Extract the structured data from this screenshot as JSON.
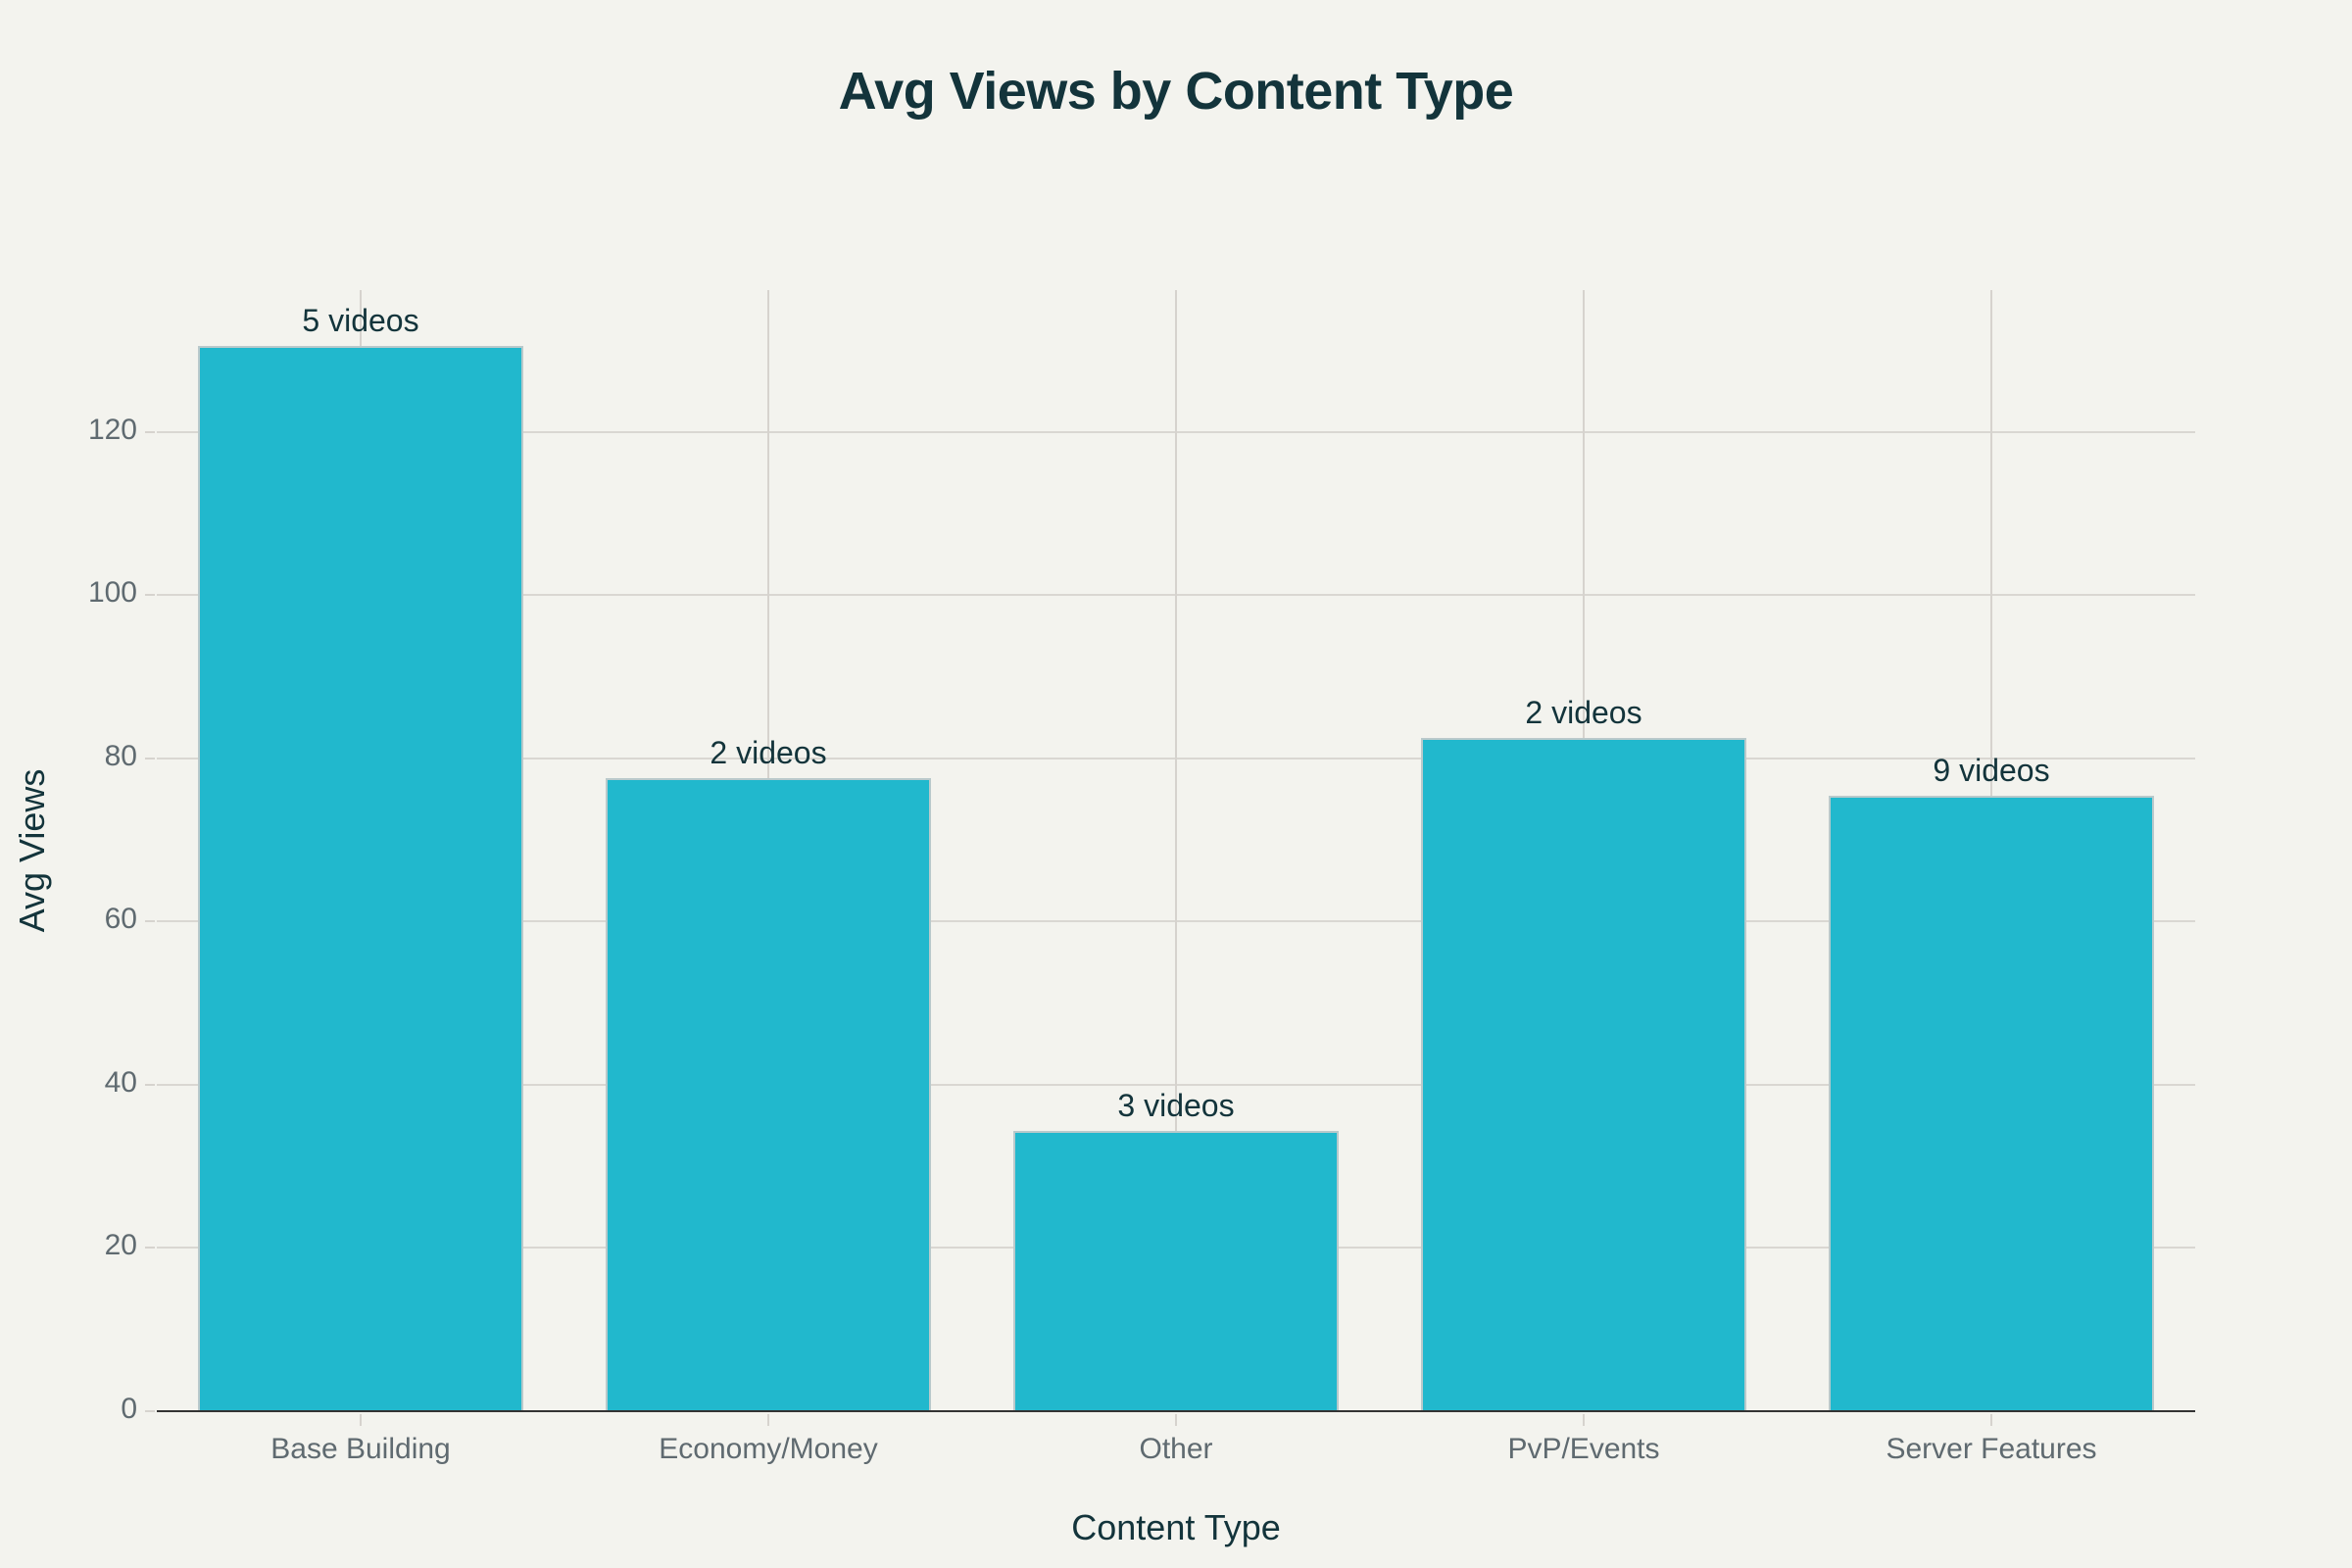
{
  "chart_data": {
    "type": "bar",
    "title": "Avg Views by Content Type",
    "xlabel": "Content Type",
    "ylabel": "Avg Views",
    "categories": [
      "Base Building",
      "Economy/Money",
      "Other",
      "PvP/Events",
      "Server Features"
    ],
    "values": [
      130.6,
      77.6,
      34.4,
      82.5,
      75.4
    ],
    "bar_labels": [
      "5 videos",
      "2 videos",
      "3 videos",
      "2 videos",
      "9 videos"
    ],
    "ylim": [
      0,
      137.4
    ],
    "yticks": [
      0,
      20,
      40,
      60,
      80,
      100,
      120
    ],
    "grid": true,
    "legend": null,
    "colors": {
      "bar": "#21b8cd",
      "background": "#f3f3ee",
      "title": "#13343b",
      "grid": "#d9d7d2"
    }
  }
}
